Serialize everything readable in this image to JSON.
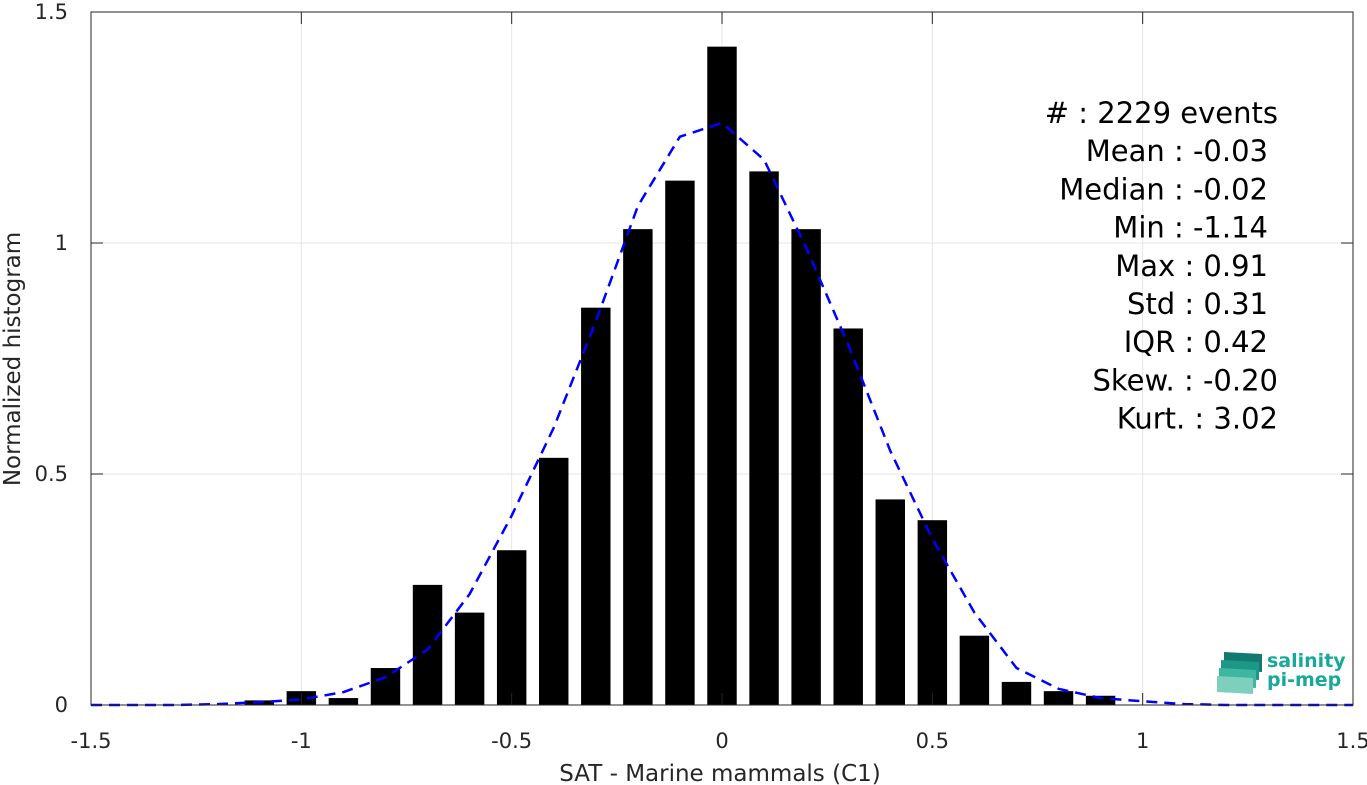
{
  "chart_data": {
    "type": "bar",
    "xlabel": "SAT - Marine mammals (C1)",
    "ylabel": "Normalized histogram",
    "xlim": [
      -1.5,
      1.5
    ],
    "ylim": [
      0,
      1.5
    ],
    "xticks": [
      "-1.5",
      "-1",
      "-0.5",
      "0",
      "0.5",
      "1",
      "1.5"
    ],
    "xtick_values": [
      -1.5,
      -1,
      -0.5,
      0,
      0.5,
      1,
      1.5
    ],
    "yticks": [
      "0",
      "0.5",
      "1",
      "1.5"
    ],
    "ytick_values": [
      0,
      0.5,
      1,
      1.5
    ],
    "grid": true,
    "bar_color": "#000000",
    "fit_color": "#0000ff",
    "bars": {
      "x": [
        -1.1,
        -1.0,
        -0.9,
        -0.8,
        -0.7,
        -0.6,
        -0.5,
        -0.4,
        -0.3,
        -0.2,
        -0.1,
        0.0,
        0.1,
        0.2,
        0.3,
        0.4,
        0.5,
        0.6,
        0.7,
        0.8,
        0.9
      ],
      "values": [
        0.01,
        0.03,
        0.015,
        0.08,
        0.26,
        0.2,
        0.335,
        0.535,
        0.86,
        1.03,
        1.135,
        1.425,
        1.155,
        1.03,
        0.815,
        0.445,
        0.4,
        0.15,
        0.05,
        0.03,
        0.02
      ]
    },
    "fit_curve": {
      "x": [
        -1.5,
        -1.4,
        -1.3,
        -1.2,
        -1.1,
        -1.0,
        -0.9,
        -0.8,
        -0.7,
        -0.6,
        -0.5,
        -0.4,
        -0.3,
        -0.2,
        -0.1,
        -0.05,
        0.0,
        0.1,
        0.2,
        0.3,
        0.4,
        0.5,
        0.6,
        0.7,
        0.8,
        0.9,
        1.0,
        1.1,
        1.2,
        1.3,
        1.4,
        1.5
      ],
      "y": [
        0.0,
        0.0,
        0.0,
        0.002,
        0.006,
        0.012,
        0.028,
        0.06,
        0.12,
        0.24,
        0.41,
        0.6,
        0.83,
        1.08,
        1.23,
        1.245,
        1.26,
        1.18,
        0.99,
        0.78,
        0.55,
        0.36,
        0.2,
        0.08,
        0.035,
        0.015,
        0.008,
        0.002,
        0.0,
        0.0,
        0.0,
        0.0
      ]
    },
    "annotations": [
      "#  : 2229 events",
      "Mean : -0.03",
      "Median : -0.02",
      "Min : -1.14",
      "Max : 0.91",
      "Std : 0.31",
      "IQR : 0.42",
      "Skew. : -0.20",
      "Kurt. : 3.02"
    ]
  },
  "logo": {
    "line1": "salinity",
    "line2": "pi-mep"
  }
}
